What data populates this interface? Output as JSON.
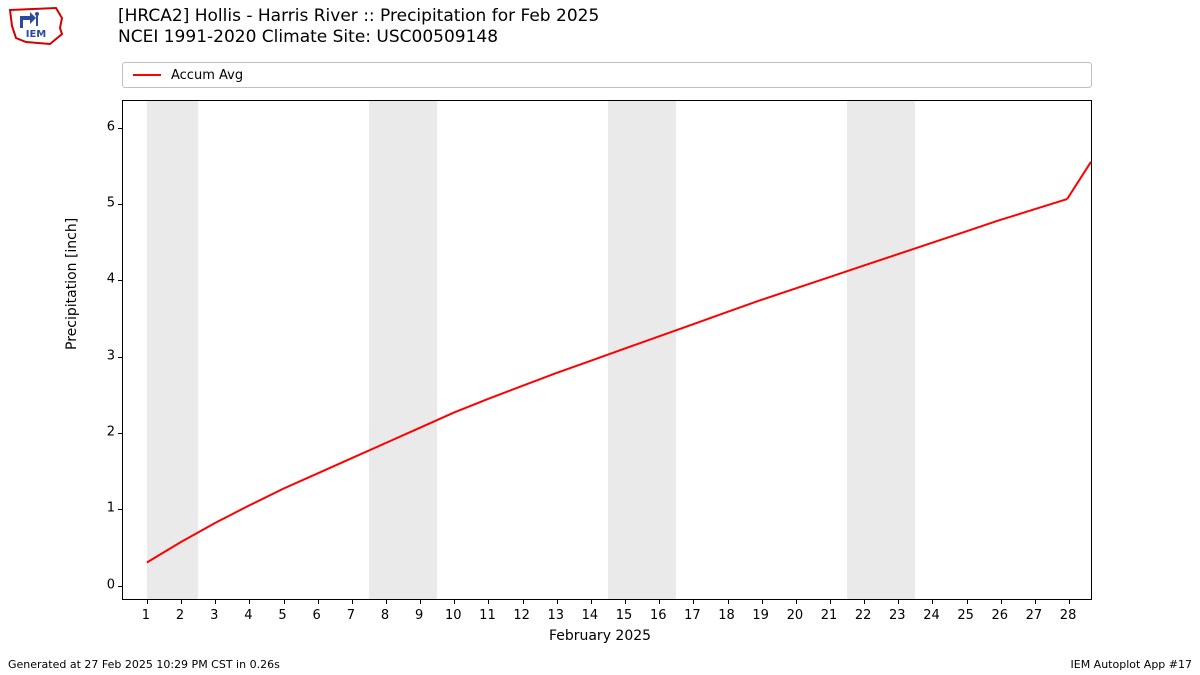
{
  "logo": {
    "label": "IEM"
  },
  "title": {
    "line1": "[HRCA2] Hollis - Harris River :: Precipitation for Feb 2025",
    "line2": "NCEI 1991-2020 Climate Site: USC00509148"
  },
  "legend": {
    "items": [
      {
        "label": "Accum Avg",
        "color": "#ff0000"
      }
    ]
  },
  "chart": {
    "type": "line",
    "background_color": "#ffffff",
    "shade_color": "#eaeaea",
    "line_color": "#ff0000",
    "line_width": 2,
    "xlim": [
      0.3,
      28.7
    ],
    "ylim": [
      -0.2,
      6.35
    ],
    "yticks": [
      0,
      1,
      2,
      3,
      4,
      5,
      6
    ],
    "xticks": [
      1,
      2,
      3,
      4,
      5,
      6,
      7,
      8,
      9,
      10,
      11,
      12,
      13,
      14,
      15,
      16,
      17,
      18,
      19,
      20,
      21,
      22,
      23,
      24,
      25,
      26,
      27,
      28
    ],
    "xlabel": "February 2025",
    "ylabel": "Precipitation [inch]",
    "shaded_x_ranges": [
      [
        1,
        2.5
      ],
      [
        7.5,
        9.5
      ],
      [
        14.5,
        16.5
      ],
      [
        21.5,
        23.5
      ]
    ],
    "series": {
      "x": [
        1,
        2,
        3,
        4,
        5,
        6,
        7,
        8,
        9,
        10,
        11,
        12,
        13,
        14,
        15,
        16,
        17,
        18,
        19,
        20,
        21,
        22,
        23,
        24,
        25,
        26,
        27,
        28
      ],
      "y": [
        0.28,
        0.55,
        0.8,
        1.03,
        1.25,
        1.45,
        1.65,
        1.85,
        2.05,
        2.25,
        2.43,
        2.6,
        2.77,
        2.93,
        3.09,
        3.25,
        3.41,
        3.57,
        3.73,
        3.88,
        4.03,
        4.18,
        4.33,
        4.48,
        4.63,
        4.78,
        4.92,
        5.06
      ]
    }
  },
  "footer": {
    "left": "Generated at 27 Feb 2025 10:29 PM CST in 0.26s",
    "right": "IEM Autoplot App #17"
  }
}
